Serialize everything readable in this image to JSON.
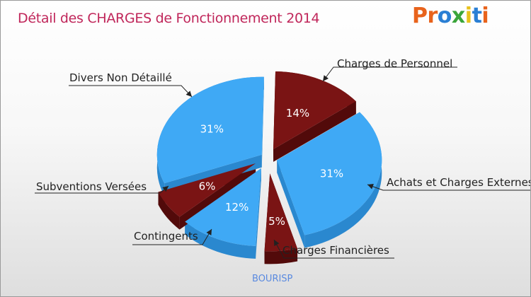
{
  "title": "Détail des CHARGES de Fonctionnement 2014",
  "logo": {
    "letters": [
      "P",
      "r",
      "o",
      "x",
      "i",
      "t",
      "i"
    ],
    "colors": [
      "#e8631c",
      "#e8631c",
      "#2a7fd4",
      "#3aa53a",
      "#e8c21c",
      "#2a7fd4",
      "#e8631c"
    ]
  },
  "commune": "BOURISP",
  "colors": {
    "blue": "#3fa9f5",
    "blue_dark": "#2a88cf",
    "red": "#7a1414",
    "red_dark": "#520a0a",
    "title": "#c0265a"
  },
  "chart_data": {
    "type": "pie",
    "title": "Détail des CHARGES de Fonctionnement 2014",
    "slices": [
      {
        "name": "Charges de Personnel",
        "pct_label": "14%",
        "value": 14,
        "color": "red"
      },
      {
        "name": "Achats et Charges Externes",
        "pct_label": "31%",
        "value": 31,
        "color": "blue"
      },
      {
        "name": "Charges Financières",
        "pct_label": "5%",
        "value": 5,
        "color": "red"
      },
      {
        "name": "Contingents",
        "pct_label": "12%",
        "value": 12,
        "color": "blue"
      },
      {
        "name": "Subventions Versées",
        "pct_label": "6%",
        "value": 6,
        "color": "red"
      },
      {
        "name": "Divers Non Détaillé",
        "pct_label": "31%",
        "value": 31,
        "color": "blue"
      }
    ]
  }
}
